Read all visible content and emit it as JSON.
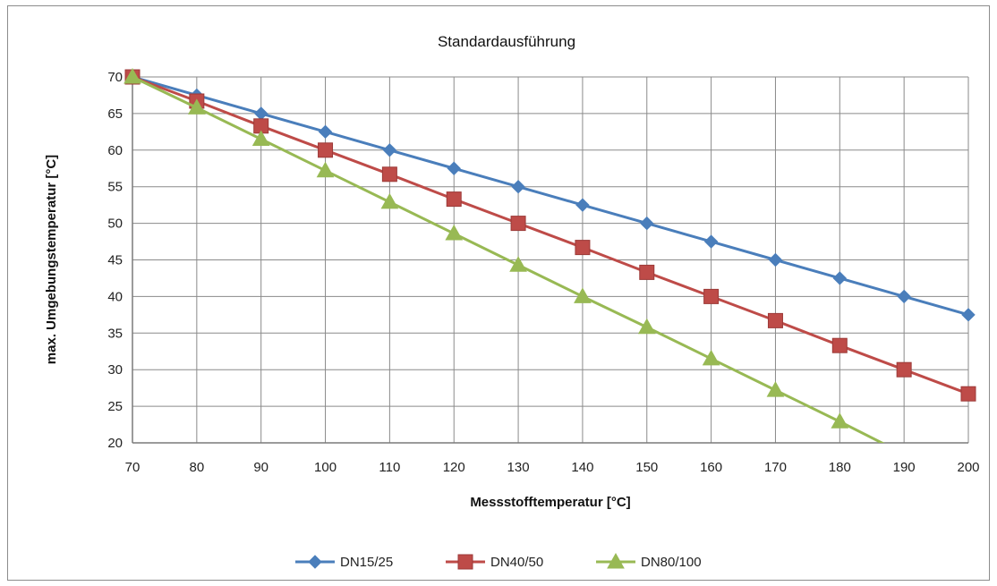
{
  "chart_data": {
    "type": "line",
    "title": "Standardausführung",
    "xlabel": "Messstofftemperatur [°C]",
    "ylabel": "max. Umgebungstemperatur [°C]",
    "xlim": [
      70,
      200
    ],
    "ylim": [
      20,
      70
    ],
    "xticks": [
      70,
      80,
      90,
      100,
      110,
      120,
      130,
      140,
      150,
      160,
      170,
      180,
      190,
      200
    ],
    "yticks": [
      20,
      25,
      30,
      35,
      40,
      45,
      50,
      55,
      60,
      65,
      70
    ],
    "grid": true,
    "legend_position": "bottom",
    "series": [
      {
        "name": "DN15/25",
        "color": "#4a7ebb",
        "marker": "diamond",
        "x": [
          70,
          80,
          90,
          100,
          110,
          120,
          130,
          140,
          150,
          160,
          170,
          180,
          190,
          200
        ],
        "y": [
          70,
          67.5,
          65,
          62.5,
          60,
          57.5,
          55,
          52.5,
          50,
          47.5,
          45,
          42.5,
          40,
          37.5
        ]
      },
      {
        "name": "DN40/50",
        "color": "#be4b48",
        "marker": "square",
        "x": [
          70,
          80,
          90,
          100,
          110,
          120,
          130,
          140,
          150,
          160,
          170,
          180,
          190,
          200
        ],
        "y": [
          70,
          66.7,
          63.3,
          60,
          56.7,
          53.3,
          50,
          46.7,
          43.3,
          40,
          36.7,
          33.3,
          30,
          26.7
        ]
      },
      {
        "name": "DN80/100",
        "color": "#98b954",
        "marker": "triangle",
        "x": [
          70,
          80,
          90,
          100,
          110,
          120,
          130,
          140,
          150,
          160,
          170,
          180,
          188.8
        ],
        "y": [
          70,
          65.8,
          61.5,
          57.2,
          52.9,
          48.6,
          44.3,
          40,
          35.8,
          31.5,
          27.2,
          22.9,
          19
        ]
      }
    ]
  }
}
